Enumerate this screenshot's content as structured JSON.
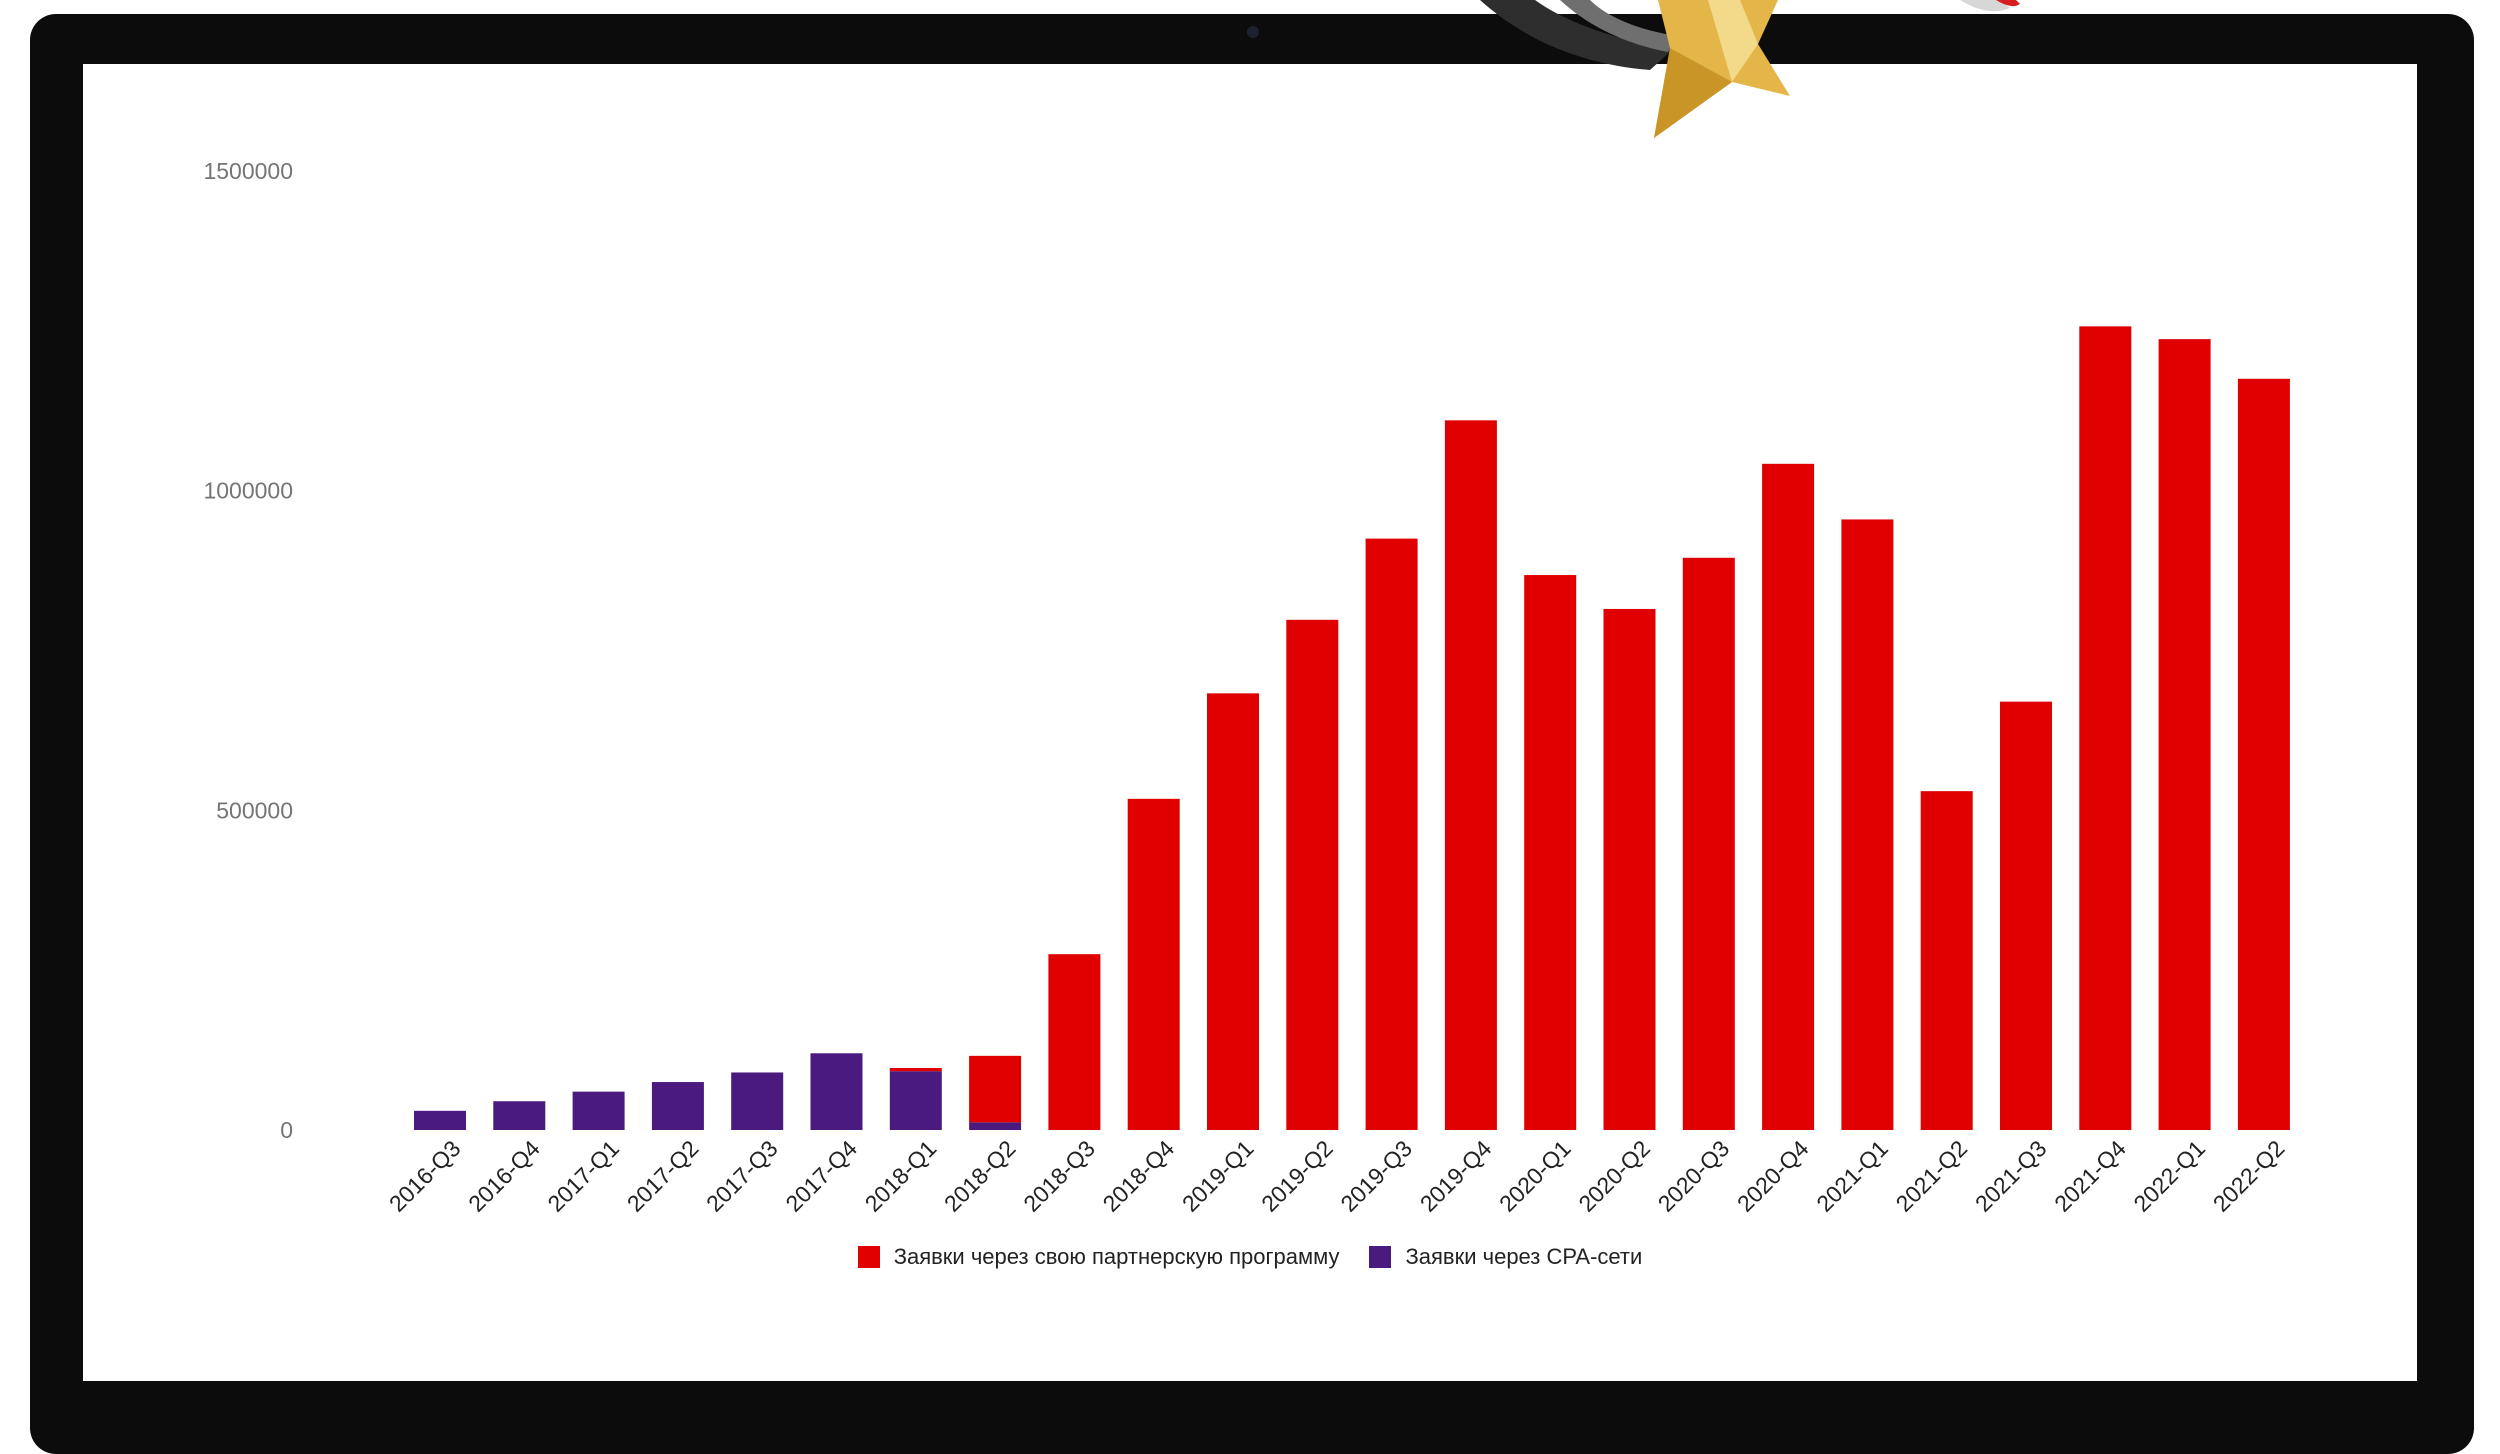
{
  "chart_data": {
    "type": "bar",
    "stacked": true,
    "categories": [
      "2016-Q3",
      "2016-Q4",
      "2017-Q1",
      "2017-Q2",
      "2017-Q3",
      "2017-Q4",
      "2018-Q1",
      "2018-Q2",
      "2018-Q3",
      "2018-Q4",
      "2019-Q1",
      "2019-Q2",
      "2019-Q3",
      "2019-Q4",
      "2020-Q1",
      "2020-Q2",
      "2020-Q3",
      "2020-Q4",
      "2021-Q1",
      "2021-Q2",
      "2021-Q3",
      "2021-Q4",
      "2022-Q1",
      "2022-Q2"
    ],
    "series": [
      {
        "name": "Заявки через CPA-сети",
        "color": "#4a1a7e",
        "values": [
          30000,
          45000,
          60000,
          75000,
          90000,
          120000,
          92000,
          12000,
          0,
          0,
          0,
          0,
          0,
          0,
          0,
          0,
          0,
          0,
          0,
          0,
          0,
          0,
          0,
          0
        ]
      },
      {
        "name": "Заявки через свою партнерскую программу",
        "color": "#e00000",
        "values": [
          0,
          0,
          0,
          0,
          0,
          0,
          5000,
          104000,
          275000,
          518000,
          683000,
          798000,
          925000,
          1110000,
          868000,
          815000,
          895000,
          1042000,
          955000,
          530000,
          670000,
          1257000,
          1237000,
          1175000
        ]
      }
    ],
    "y_ticks": [
      "1500000",
      "1000000",
      "500000",
      "0"
    ],
    "ylim": [
      0,
      1500000
    ],
    "legend": [
      {
        "label": "Заявки через свою партнерскую программу",
        "color": "#e00000"
      },
      {
        "label": "Заявки через CPA-сети",
        "color": "#4a1a7e"
      }
    ],
    "legend_position": "bottom",
    "grid": false
  }
}
